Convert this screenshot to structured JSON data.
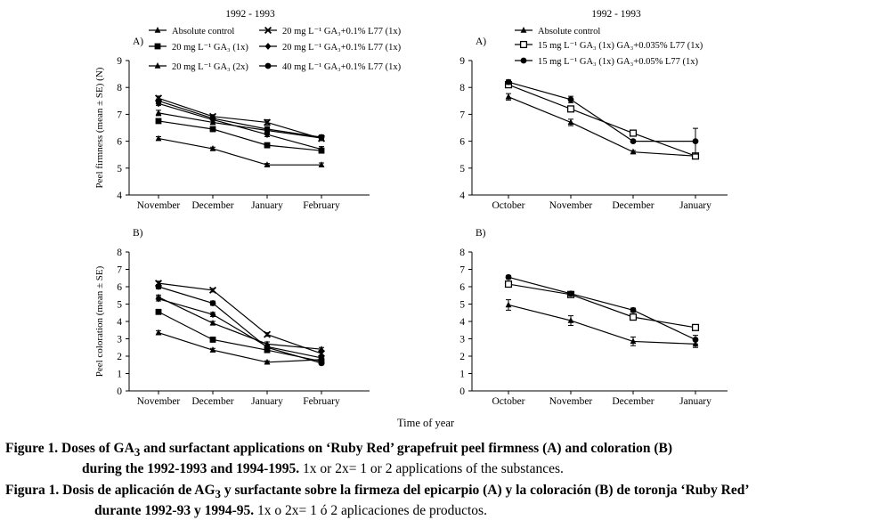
{
  "x_axis_title": "Time of year",
  "chart_data": [
    {
      "id": "left-A",
      "type": "line",
      "title": "1992 - 1993",
      "panel_label": "A)",
      "ylabel": "Peel firmness (mean ± SE) (N)",
      "ylim": [
        4,
        9
      ],
      "yticks": [
        4,
        5,
        6,
        7,
        8,
        9
      ],
      "categories": [
        "November",
        "December",
        "January",
        "February"
      ],
      "legend": [
        {
          "label": "Absolute control",
          "marker": "triangle"
        },
        {
          "label": "20 mg L⁻¹ GA₃ (1x)",
          "marker": "square-open"
        },
        {
          "label": "20 mg L⁻¹ GA₃ (2x)",
          "marker": "triangle"
        },
        {
          "label": "20 mg L⁻¹ GA₃+0.1% L77 (1x)",
          "marker": "x"
        },
        {
          "label": "20 mg L⁻¹ GA₃+0.1% L77 (1x)",
          "marker": "diamond"
        },
        {
          "label": "40 mg L⁻¹ GA₃+0.1% L77 (1x)",
          "marker": "circle"
        }
      ],
      "series": [
        {
          "name": "Absolute control",
          "marker": "triangle",
          "values": [
            6.1,
            5.72,
            5.12,
            5.12
          ],
          "err": [
            0.07,
            0.06,
            0.05,
            0.07
          ]
        },
        {
          "name": "20 mg L⁻¹ GA₃ (1x)",
          "marker": "square",
          "values": [
            6.75,
            6.45,
            5.85,
            5.65
          ],
          "err": [
            0.07,
            0.08,
            0.09,
            0.08
          ]
        },
        {
          "name": "20 mg L⁻¹ GA₃ (2x)",
          "marker": "triangle",
          "values": [
            7.05,
            6.7,
            6.4,
            6.12
          ],
          "err": [
            0.1,
            0.08,
            0.1,
            0.08
          ]
        },
        {
          "name": "20 mg L⁻¹ GA₃+0.1% L77 (1x)",
          "marker": "x",
          "values": [
            7.6,
            6.92,
            6.7,
            6.1
          ],
          "err": [
            0.08,
            0.07,
            0.1,
            0.08
          ]
        },
        {
          "name": "20 mg L⁻¹ GA₃+0.1% L77 (1x)",
          "marker": "diamond",
          "values": [
            7.4,
            6.8,
            6.25,
            5.7
          ],
          "err": [
            0.07,
            0.08,
            0.08,
            0.1
          ]
        },
        {
          "name": "40 mg L⁻¹ GA₃+0.1% L77 (1x)",
          "marker": "circle",
          "values": [
            7.5,
            6.85,
            6.45,
            6.15
          ],
          "err": [
            0.07,
            0.07,
            0.09,
            0.08
          ]
        }
      ]
    },
    {
      "id": "right-A",
      "type": "line",
      "title": "1992 - 1993",
      "panel_label": "A)",
      "ylabel": "",
      "ylim": [
        4,
        9
      ],
      "yticks": [
        4,
        5,
        6,
        7,
        8,
        9
      ],
      "categories": [
        "October",
        "November",
        "December",
        "January"
      ],
      "legend": [
        {
          "label": "Absolute control",
          "marker": "triangle"
        },
        {
          "label": "15 mg L⁻¹ GA₃ (1x) GA₃+0.035% L77 (1x)",
          "marker": "square-open"
        },
        {
          "label": "15 mg L⁻¹ GA₃ (1x) GA₃+0.05% L77 (1x)",
          "marker": "circle"
        }
      ],
      "series": [
        {
          "name": "Absolute control",
          "marker": "triangle",
          "values": [
            7.65,
            6.7,
            5.6,
            5.45
          ],
          "err": [
            0.12,
            0.12,
            0.05,
            0.05
          ]
        },
        {
          "name": "15 mg L⁻¹ GA₃ (1x) GA₃+0.035% L77 (1x)",
          "marker": "square-open",
          "values": [
            8.1,
            7.2,
            6.3,
            5.45
          ],
          "err": [
            0.08,
            0.1,
            0.05,
            0.08
          ]
        },
        {
          "name": "15 mg L⁻¹ GA₃ (1x) GA₃+0.05% L77 (1x)",
          "marker": "circle",
          "values": [
            8.2,
            7.55,
            6.0,
            6.0
          ],
          "err": [
            0.08,
            0.12,
            0.05,
            0.48
          ]
        }
      ]
    },
    {
      "id": "left-B",
      "type": "line",
      "title": "",
      "panel_label": "B)",
      "ylabel": "Peel coloration (mean ± SE)",
      "ylim": [
        0,
        8
      ],
      "yticks": [
        0,
        1,
        2,
        3,
        4,
        5,
        6,
        7,
        8
      ],
      "categories": [
        "November",
        "December",
        "January",
        "February"
      ],
      "series": [
        {
          "name": "Absolute control",
          "marker": "triangle",
          "values": [
            3.35,
            2.35,
            1.65,
            1.8
          ],
          "err": [
            0.12,
            0.1,
            0.08,
            0.1
          ]
        },
        {
          "name": "20 mg L⁻¹ GA₃ (1x)",
          "marker": "square",
          "values": [
            4.55,
            2.95,
            2.35,
            1.7
          ],
          "err": [
            0.12,
            0.1,
            0.1,
            0.1
          ]
        },
        {
          "name": "20 mg L⁻¹ GA₃ (2x)",
          "marker": "triangle",
          "values": [
            5.4,
            3.9,
            2.7,
            2.4
          ],
          "err": [
            0.12,
            0.1,
            0.12,
            0.1
          ]
        },
        {
          "name": "20 mg L⁻¹ GA₃+0.1% L77 (1x)",
          "marker": "x",
          "values": [
            6.2,
            5.8,
            3.25,
            2.15
          ],
          "err": [
            0.12,
            0.1,
            0.1,
            0.12
          ]
        },
        {
          "name": "20 mg L⁻¹ GA₃+0.1% L77 (1x)",
          "marker": "diamond",
          "values": [
            5.3,
            4.4,
            2.55,
            1.9
          ],
          "err": [
            0.12,
            0.12,
            0.1,
            0.1
          ]
        },
        {
          "name": "40 mg L⁻¹ GA₃+0.1% L77 (1x)",
          "marker": "circle",
          "values": [
            6.0,
            5.05,
            2.5,
            1.6
          ],
          "err": [
            0.12,
            0.12,
            0.1,
            0.1
          ]
        }
      ]
    },
    {
      "id": "right-B",
      "type": "line",
      "title": "",
      "panel_label": "B)",
      "ylabel": "",
      "ylim": [
        0,
        8
      ],
      "yticks": [
        0,
        1,
        2,
        3,
        4,
        5,
        6,
        7,
        8
      ],
      "categories": [
        "October",
        "November",
        "December",
        "January"
      ],
      "series": [
        {
          "name": "Absolute control",
          "marker": "triangle",
          "values": [
            4.95,
            4.05,
            2.85,
            2.7
          ],
          "err": [
            0.3,
            0.28,
            0.25,
            0.2
          ]
        },
        {
          "name": "15 mg L⁻¹ GA₃ (1x) GA₃+0.035% L77 (1x)",
          "marker": "square-open",
          "values": [
            6.15,
            5.55,
            4.25,
            3.65
          ],
          "err": [
            0.1,
            0.1,
            0.12,
            0.08
          ]
        },
        {
          "name": "15 mg L⁻¹ GA₃ (1x) GA₃+0.05% L77 (1x)",
          "marker": "circle",
          "values": [
            6.55,
            5.6,
            4.65,
            2.95
          ],
          "err": [
            0.1,
            0.12,
            0.12,
            0.25
          ]
        }
      ]
    }
  ],
  "caption_en": {
    "lead": "Figure 1. Doses of GA",
    "sub": "3",
    "rest1": " and surfactant applications on ‘Ruby Red’ grapefruit peel firmness (A) and coloration (B)",
    "line2_bold": "during the 1992-1993 and 1994-1995.",
    "line2_normal": " 1x or 2x= 1 or 2 applications of the substances."
  },
  "caption_es": {
    "lead": "Figura 1. Dosis de aplicación de AG",
    "sub": "3",
    "rest1": " y surfactante sobre la firmeza del epicarpio (A) y la coloración (B) de toronja ‘Ruby Red’",
    "line2_bold": "durante 1992-93 y 1994-95.",
    "line2_normal": " 1x o 2x= 1 ó 2 aplicaciones de productos."
  }
}
